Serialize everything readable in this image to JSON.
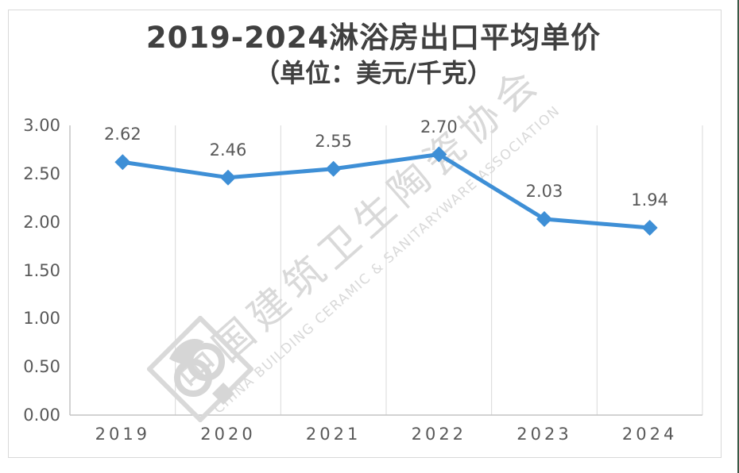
{
  "title": {
    "text": "2019-2024淋浴房出口平均单价",
    "subtitle": "（单位：美元/千克）",
    "color": "#404040"
  },
  "watermark": {
    "cn": "中国建筑卫生陶瓷协会",
    "en": "CHINA BUILDING CERAMIC & SANITARYWARE ASSOCIATION",
    "color": "#d9d9d9",
    "logo": "cbcsa-diamond-emblem"
  },
  "chart_data": {
    "type": "line",
    "title": "2019-2024淋浴房出口平均单价",
    "subtitle": "（单位：美元/千克）",
    "categories": [
      "2019",
      "2020",
      "2021",
      "2022",
      "2023",
      "2024"
    ],
    "series": [
      {
        "name": "淋浴房出口平均单价",
        "values": [
          2.62,
          2.46,
          2.55,
          2.7,
          2.03,
          1.94
        ]
      }
    ],
    "data_labels": [
      "2.62",
      "2.46",
      "2.55",
      "2.70",
      "2.03",
      "1.94"
    ],
    "xlabel": "",
    "ylabel": "",
    "ylim": [
      0,
      3
    ],
    "y_ticks": [
      "0.00",
      "0.50",
      "1.00",
      "1.50",
      "2.00",
      "2.50",
      "3.00"
    ],
    "grid": "vertical-only",
    "legend": "none",
    "line_color": "#3e8fd6",
    "marker": "diamond",
    "label_color": "#595959",
    "gridline_color": "#d9d9d9",
    "axis_line_color": "#c4c4c4"
  }
}
